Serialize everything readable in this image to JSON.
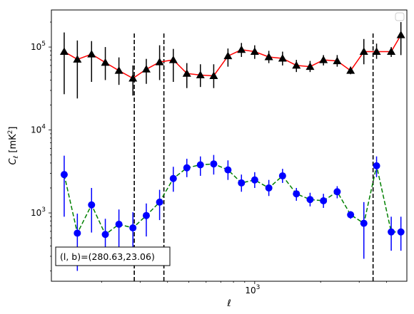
{
  "chart_data": {
    "type": "scatter",
    "title": "",
    "xlabel": "ℓ",
    "ylabel_parts": {
      "base": "C",
      "sub": "ℓ",
      "unit_pre": "[mK",
      "unit_sup": "2",
      "unit_post": "]"
    },
    "xscale": "log",
    "yscale": "log",
    "xlim": [
      118,
      4950
    ],
    "ylim": [
      150,
      280000
    ],
    "grid": false,
    "legend": {
      "placement": "top-right",
      "entries": []
    },
    "x_tick_labels": [
      {
        "value": 1000,
        "base": "10",
        "exp": "3"
      }
    ],
    "y_tick_labels": [
      {
        "value": 1000,
        "base": "10",
        "exp": "3"
      },
      {
        "value": 10000,
        "base": "10",
        "exp": "4"
      },
      {
        "value": 100000,
        "base": "10",
        "exp": "5"
      }
    ],
    "vlines": [
      282,
      385,
      3470
    ],
    "vline_style": {
      "color": "#000000",
      "dash": "dashed"
    },
    "annotation": {
      "text": "(l, b)=(280.63,23.06)",
      "placement": "bottom-left"
    },
    "series": [
      {
        "marker": "triangle",
        "marker_color": "#000000",
        "line_color": "#ff0000",
        "line_style": "solid",
        "errorbar_color": "#000000",
        "x": [
          135,
          155,
          180,
          208,
          240,
          278,
          320,
          368,
          425,
          490,
          565,
          650,
          755,
          870,
          1000,
          1160,
          1340,
          1550,
          1790,
          2060,
          2380,
          2740,
          3150,
          3600,
          4200,
          4650
        ],
        "y": [
          88000,
          71000,
          82000,
          65000,
          52000,
          42000,
          54000,
          66000,
          70000,
          48000,
          46000,
          45000,
          78000,
          93000,
          88000,
          76000,
          73000,
          60000,
          58000,
          70000,
          68000,
          52000,
          88000,
          88000,
          88000,
          140000
        ],
        "yerr_low": [
          27000,
          24000,
          38000,
          40000,
          35000,
          26000,
          36000,
          40000,
          38000,
          32000,
          33000,
          32000,
          58000,
          76000,
          72000,
          64000,
          60000,
          50000,
          50000,
          60000,
          58000,
          47000,
          62000,
          72000,
          76000,
          80000
        ],
        "yerr_high": [
          150000,
          120000,
          118000,
          100000,
          75000,
          60000,
          72000,
          105000,
          95000,
          64000,
          62000,
          62000,
          96000,
          112000,
          105000,
          90000,
          88000,
          70000,
          68000,
          80000,
          80000,
          58000,
          125000,
          110000,
          100000,
          200000
        ]
      },
      {
        "marker": "circle",
        "marker_color": "#0000ff",
        "line_color": "#008000",
        "line_style": "dashed",
        "errorbar_color": "#0000ff",
        "x": [
          135,
          155,
          180,
          208,
          240,
          278,
          320,
          368,
          425,
          490,
          565,
          650,
          755,
          870,
          1000,
          1160,
          1340,
          1550,
          1790,
          2060,
          2380,
          2740,
          3150,
          3600,
          4200,
          4650
        ],
        "y": [
          2900,
          570,
          1250,
          550,
          730,
          660,
          930,
          1350,
          2600,
          3500,
          3800,
          3900,
          3300,
          2300,
          2500,
          2000,
          2800,
          1700,
          1450,
          1400,
          1800,
          950,
          750,
          3700,
          590,
          590
        ],
        "yerr_low": [
          900,
          200,
          580,
          260,
          330,
          300,
          520,
          820,
          1800,
          2700,
          2800,
          2900,
          2500,
          1800,
          2000,
          1600,
          2300,
          1400,
          1200,
          1150,
          1500,
          850,
          280,
          2700,
          350,
          350
        ],
        "yerr_high": [
          4900,
          980,
          2000,
          850,
          1100,
          1020,
          1300,
          1900,
          3600,
          4500,
          4800,
          5000,
          4300,
          2900,
          3100,
          2500,
          3400,
          2000,
          1750,
          1700,
          2100,
          1050,
          1350,
          4800,
          900,
          900
        ]
      }
    ]
  }
}
